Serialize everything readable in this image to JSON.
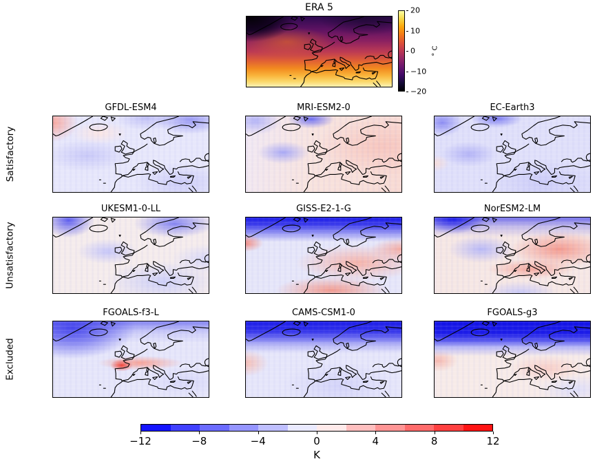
{
  "reference_panel": {
    "title": "ERA 5",
    "colorbar": {
      "ticks": [
        "20",
        "10",
        "0",
        "−10",
        "−20"
      ],
      "label": "° C",
      "gradient": [
        "#000004",
        "#160b39",
        "#420a68",
        "#6a176e",
        "#932667",
        "#bc3754",
        "#dd513a",
        "#f37819",
        "#fca50a",
        "#f6d746",
        "#fcffa4"
      ]
    }
  },
  "rows": [
    {
      "label": "Satisfactory",
      "models": [
        "GFDL-ESM4",
        "MRI-ESM2-0",
        "EC-Earth3"
      ]
    },
    {
      "label": "Unsatisfactory",
      "models": [
        "UKESM1-0-LL",
        "GISS-E2-1-G",
        "NorESM2-LM"
      ]
    },
    {
      "label": "Excluded",
      "models": [
        "FGOALS-f3-L",
        "CAMS-CSM1-0",
        "FGOALS-g3"
      ]
    }
  ],
  "bias_colorbar": {
    "ticks": [
      "−12",
      "−8",
      "−4",
      "0",
      "4",
      "8",
      "12"
    ],
    "label": "K",
    "segments": [
      "#1414ff",
      "#4040ff",
      "#6b6bff",
      "#9595ff",
      "#bfbfff",
      "#eaeaff",
      "#ffeaea",
      "#ffbfbf",
      "#ff9595",
      "#ff6b6b",
      "#ff4040",
      "#ff1414"
    ]
  },
  "chart_data": {
    "type": "heatmap",
    "layout": "1 reference map (top center) + 3x3 grid of model bias maps over the Euro-Atlantic / North Africa domain",
    "panels": [
      {
        "name": "ERA 5",
        "role": "reference",
        "units": "° C",
        "colorbar_range": [
          -20,
          20
        ],
        "colorbar_ticks": [
          20,
          10,
          0,
          -10,
          -20
        ],
        "colormap": "inferno-like (dark = cold, yellow = warm)",
        "pattern": "near-black over Greenland and the Arctic edge, purple over Scandinavia and NE Europe, orange over the mid-Atlantic and Mediterranean, pale yellow over North Africa and the subtropical Atlantic"
      },
      {
        "name": "GFDL-ESM4",
        "group": "Satisfactory",
        "units": "K",
        "pattern": "weak biases (about ±2 K); warm patch at NW corner near Greenland; cool patch over NE Scandinavia/Barents; faint cool blobs in mid-Atlantic and over North Africa"
      },
      {
        "name": "MRI-ESM2-0",
        "group": "Satisfactory",
        "units": "K",
        "pattern": "slight warm bias (+1 to +3 K) over eastern Europe and Africa; cool streak north of Iceland toward Norway; weak cool blob in mid-Atlantic"
      },
      {
        "name": "EC-Earth3",
        "group": "Satisfactory",
        "units": "K",
        "pattern": "weak cool bias (−1 to −3 K) almost everywhere; stronger cool patches along the Greenland coast and Norwegian Sea"
      },
      {
        "name": "UKESM1-0-LL",
        "group": "Unsatisfactory",
        "units": "K",
        "pattern": "near-neutral ocean; cold bias (−4 to −8 K) along Greenland east coast and over Scandinavia/Barents; mottled cool bias over the Mediterranean and North Africa"
      },
      {
        "name": "GISS-E2-1-G",
        "group": "Unsatisfactory",
        "units": "K",
        "pattern": "strong cold band (−8 to −12 K) along the whole northern edge; warm bias (+2 to +6 K) over southern/eastern Europe and North Africa; warm patch west of Greenland"
      },
      {
        "name": "NorESM2-LM",
        "group": "Unsatisfactory",
        "units": "K",
        "pattern": "cold bias (−8 to −12 K) north of Greenland and Iceland; warm bias (+2 to +6 K) over eastern Europe, Anatolia and the Mediterranean"
      },
      {
        "name": "FGOALS-f3-L",
        "group": "Excluded",
        "units": "K",
        "pattern": "widespread cold bias (−4 to −10 K) over the North Atlantic and Nordic seas; warm band (+2 to +8 K) across northern Spain, southern France and central Europe"
      },
      {
        "name": "CAMS-CSM1-0",
        "group": "Excluded",
        "units": "K",
        "pattern": "strong cold band (−8 to −12 K) across the entire northern third fading southward; weak cool mottling south; slight warm patch at the western edge"
      },
      {
        "name": "FGOALS-g3",
        "group": "Excluded",
        "units": "K",
        "pattern": "very strong sharp cold band (−10 to −12 K) across the northern third; weak warm bias (+1 to +2 K) elsewhere"
      }
    ],
    "bias_colorbar": {
      "range": [
        -12,
        12
      ],
      "ticks": [
        -12,
        -8,
        -4,
        0,
        4,
        8,
        12
      ],
      "units": "K",
      "n_segments": 12,
      "style": "discrete blue-white-red"
    },
    "row_groups": {
      "Satisfactory": [
        "GFDL-ESM4",
        "MRI-ESM2-0",
        "EC-Earth3"
      ],
      "Unsatisfactory": [
        "UKESM1-0-LL",
        "GISS-E2-1-G",
        "NorESM2-LM"
      ],
      "Excluded": [
        "FGOALS-f3-L",
        "CAMS-CSM1-0",
        "FGOALS-g3"
      ]
    },
    "grid": "off",
    "legend_position": "reference colorbar right of ERA 5 panel; bias colorbar centered at bottom"
  }
}
